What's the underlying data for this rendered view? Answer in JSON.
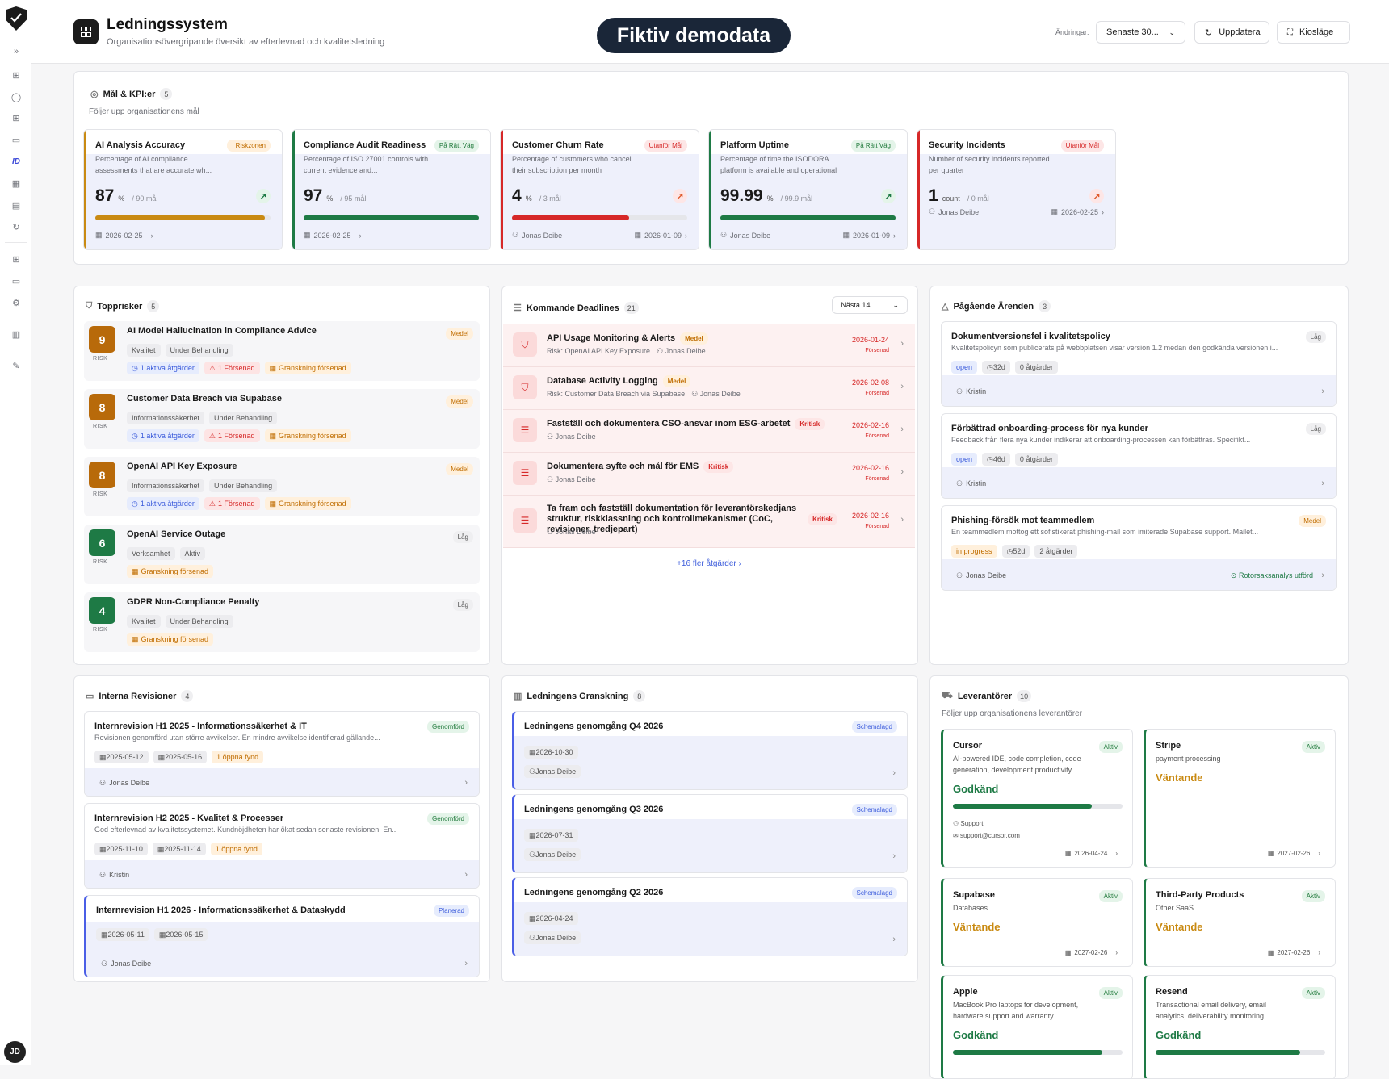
{
  "header": {
    "title": "Ledningssystem",
    "subtitle": "Organisationsövergripande översikt av efterlevnad och kvalitetsledning",
    "demo_label": "Fiktiv demodata",
    "changes_label": "Ändringar:",
    "period_select": "Senaste 30...",
    "refresh_label": "Uppdatera",
    "kiosk_label": "Kiosläge"
  },
  "user": {
    "initials": "JD"
  },
  "kpis": {
    "title": "Mål & KPI:er",
    "count": "5",
    "subtitle": "Följer upp organisationens mål",
    "items": [
      {
        "title": "AI Analysis Accuracy",
        "desc": "Percentage of AI compliance assessments that are accurate wh...",
        "status": "I Riskzonen",
        "value": "87",
        "unit": "%",
        "target": "/ 90 mål",
        "progress": 0.97,
        "color": "#c98a12",
        "owner": "",
        "date": "2026-02-25",
        "trend": "up"
      },
      {
        "title": "Compliance Audit Readiness",
        "desc": "Percentage of ISO 27001 controls with current evidence and...",
        "status": "På Rätt Väg",
        "value": "97",
        "unit": "%",
        "target": "/ 95 mål",
        "progress": 1.0,
        "color": "#1e7a45",
        "owner": "",
        "date": "2026-02-25",
        "trend": "none"
      },
      {
        "title": "Customer Churn Rate",
        "desc": "Percentage of customers who cancel their subscription per month",
        "status": "Utanför Mål",
        "value": "4",
        "unit": "%",
        "target": "/ 3 mål",
        "progress": 0.67,
        "color": "#d62828",
        "owner": "Jonas Deibe",
        "date": "2026-01-09",
        "trend": "up"
      },
      {
        "title": "Platform Uptime",
        "desc": "Percentage of time the ISODORA platform is available and operational",
        "status": "På Rätt Väg",
        "value": "99.99",
        "unit": "%",
        "target": "/ 99.9 mål",
        "progress": 1.0,
        "color": "#1e7a45",
        "owner": "Jonas Deibe",
        "date": "2026-01-09",
        "trend": "up"
      },
      {
        "title": "Security Incidents",
        "desc": "Number of security incidents reported per quarter",
        "status": "Utanför Mål",
        "value": "1",
        "unit": "count",
        "target": "/ 0 mål",
        "progress": 0,
        "color": "#d62828",
        "owner": "Jonas Deibe",
        "date": "2026-02-25",
        "trend": "up"
      }
    ]
  },
  "risks": {
    "title": "Topprisker",
    "count": "5",
    "risk_label": "RISK",
    "items": [
      {
        "score": "9",
        "name": "AI Model Hallucination in Compliance Advice",
        "level": "Medel",
        "tags": [
          "Kvalitet",
          "Under Behandling"
        ],
        "chips": [
          "1 aktiva åtgärder",
          "1 Försenad",
          "Granskning försenad"
        ],
        "color": "#b86a0a"
      },
      {
        "score": "8",
        "name": "Customer Data Breach via Supabase",
        "level": "Medel",
        "tags": [
          "Informationssäkerhet",
          "Under Behandling"
        ],
        "chips": [
          "1 aktiva åtgärder",
          "1 Försenad",
          "Granskning försenad"
        ],
        "color": "#b86a0a"
      },
      {
        "score": "8",
        "name": "OpenAI API Key Exposure",
        "level": "Medel",
        "tags": [
          "Informationssäkerhet",
          "Under Behandling"
        ],
        "chips": [
          "1 aktiva åtgärder",
          "1 Försenad",
          "Granskning försenad"
        ],
        "color": "#b86a0a"
      },
      {
        "score": "6",
        "name": "OpenAI Service Outage",
        "level": "Låg",
        "tags": [
          "Verksamhet",
          "Aktiv"
        ],
        "chips": [
          "Granskning försenad"
        ],
        "color": "#1e7a45"
      },
      {
        "score": "4",
        "name": "GDPR Non-Compliance Penalty",
        "level": "Låg",
        "tags": [
          "Kvalitet",
          "Under Behandling"
        ],
        "chips": [
          "Granskning försenad"
        ],
        "color": "#1e7a45"
      }
    ]
  },
  "deadlines": {
    "title": "Kommande Deadlines",
    "count": "21",
    "filter": "Nästa 14 ...",
    "more": "+16 fler åtgärder",
    "items": [
      {
        "icon": "shield-icon",
        "title": "API Usage Monitoring & Alerts",
        "badge": "Medel",
        "risk": "Risk: OpenAI API Key Exposure",
        "owner": "Jonas Deibe",
        "date": "2026-01-24",
        "status": "Försenad"
      },
      {
        "icon": "shield-icon",
        "title": "Database Activity Logging",
        "badge": "Medel",
        "risk": "Risk: Customer Data Breach via Supabase",
        "owner": "Jonas Deibe",
        "date": "2026-02-08",
        "status": "Försenad"
      },
      {
        "icon": "list-icon",
        "title": "Fastställ och dokumentera CSO-ansvar inom ESG-arbetet",
        "badge": "Kritisk",
        "risk": "",
        "owner": "Jonas Deibe",
        "date": "2026-02-16",
        "status": "Försenad"
      },
      {
        "icon": "list-icon",
        "title": "Dokumentera syfte och mål för EMS",
        "badge": "Kritisk",
        "risk": "",
        "owner": "Jonas Deibe",
        "date": "2026-02-16",
        "status": "Försenad"
      },
      {
        "icon": "list-icon",
        "title": "Ta fram och fastställ dokumentation för leverantörskedjans struktur, riskklassning och kontrollmekanismer (CoC, revisioner, tredjepart)",
        "badge": "Kritisk",
        "risk": "",
        "owner": "Jonas Deibe",
        "date": "2026-02-16",
        "status": "Försenad"
      }
    ]
  },
  "cases": {
    "title": "Pågående Ärenden",
    "count": "3",
    "items": [
      {
        "title": "Dokumentversionsfel i kvalitetspolicy",
        "desc": "Kvalitetspolicyn som publicerats på webbplatsen visar version 1.2 medan den godkända versionen i...",
        "level": "Låg",
        "status": "open",
        "age": "32d",
        "actions": "0 åtgärder",
        "owner": "Kristin",
        "extra": ""
      },
      {
        "title": "Förbättrad onboarding-process för nya kunder",
        "desc": "Feedback från flera nya kunder indikerar att onboarding-processen kan förbättras. Specifikt...",
        "level": "Låg",
        "status": "open",
        "age": "46d",
        "actions": "0 åtgärder",
        "owner": "Kristin",
        "extra": ""
      },
      {
        "title": "Phishing-försök mot teammedlem",
        "desc": "En teammedlem mottog ett sofistikerat phishing-mail som imiterade Supabase support. Mailet...",
        "level": "Medel",
        "status": "in progress",
        "age": "52d",
        "actions": "2 åtgärder",
        "owner": "Jonas Deibe",
        "extra": "Rotorsaksanalys utförd"
      }
    ]
  },
  "audits": {
    "title": "Interna Revisioner",
    "count": "4",
    "items": [
      {
        "title": "Internrevision H1 2025 - Informationssäkerhet & IT",
        "desc": "Revisionen genomförd utan större avvikelser. En mindre avvikelse identifierad gällande...",
        "status": "Genomförd",
        "start": "2025-05-12",
        "end": "2025-05-16",
        "findings": "1 öppna fynd",
        "owner": "Jonas Deibe"
      },
      {
        "title": "Internrevision H2 2025 - Kvalitet & Processer",
        "desc": "God efterlevnad av kvalitetssystemet. Kundnöjdheten har ökat sedan senaste revisionen. En...",
        "status": "Genomförd",
        "start": "2025-11-10",
        "end": "2025-11-14",
        "findings": "1 öppna fynd",
        "owner": "Kristin"
      },
      {
        "title": "Internrevision H1 2026 - Informationssäkerhet & Dataskydd",
        "desc": "",
        "status": "Planerad",
        "start": "2026-05-11",
        "end": "2026-05-15",
        "findings": "",
        "owner": "Jonas Deibe"
      }
    ]
  },
  "reviews": {
    "title": "Ledningens Granskning",
    "count": "8",
    "items": [
      {
        "title": "Ledningens genomgång Q4 2026",
        "status": "Schemalagd",
        "date": "2026-10-30",
        "owner": "Jonas Deibe"
      },
      {
        "title": "Ledningens genomgång Q3 2026",
        "status": "Schemalagd",
        "date": "2026-07-31",
        "owner": "Jonas Deibe"
      },
      {
        "title": "Ledningens genomgång Q2 2026",
        "status": "Schemalagd",
        "date": "2026-04-24",
        "owner": "Jonas Deibe"
      }
    ]
  },
  "suppliers": {
    "title": "Leverantörer",
    "count": "10",
    "subtitle": "Följer upp organisationens leverantörer",
    "items": [
      {
        "name": "Cursor",
        "desc": "AI-powered IDE, code completion, code generation, development productivity...",
        "status": "Aktiv",
        "approval": "Godkänd",
        "progress": 0.82,
        "contact": "Support",
        "email": "support@cursor.com",
        "date": "2026-04-24"
      },
      {
        "name": "Stripe",
        "desc": "payment processing",
        "status": "Aktiv",
        "approval": "Väntande",
        "progress": 0,
        "contact": "",
        "email": "",
        "date": "2027-02-26"
      },
      {
        "name": "Supabase",
        "desc": "Databases",
        "status": "Aktiv",
        "approval": "Väntande",
        "progress": 0,
        "contact": "",
        "email": "",
        "date": "2027-02-26"
      },
      {
        "name": "Third-Party Products",
        "desc": "Other SaaS",
        "status": "Aktiv",
        "approval": "Väntande",
        "progress": 0,
        "contact": "",
        "email": "",
        "date": "2027-02-26"
      },
      {
        "name": "Apple",
        "desc": "MacBook Pro laptops for development, hardware support and warranty",
        "status": "Aktiv",
        "approval": "Godkänd",
        "progress": 0.88,
        "contact": "",
        "email": "",
        "date": ""
      },
      {
        "name": "Resend",
        "desc": "Transactional email delivery, email analytics, deliverability monitoring",
        "status": "Aktiv",
        "approval": "Godkänd",
        "progress": 0.85,
        "contact": "",
        "email": "",
        "date": ""
      }
    ]
  }
}
